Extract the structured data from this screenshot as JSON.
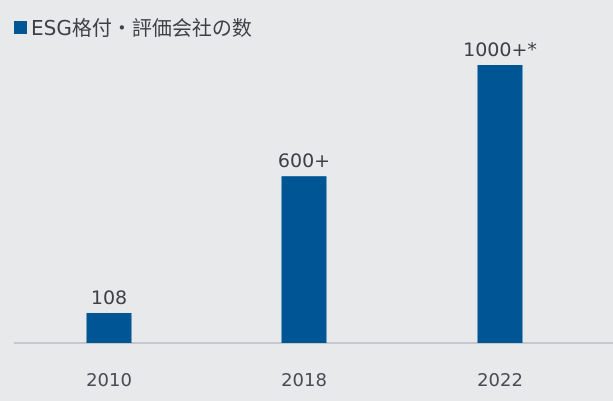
{
  "colors": {
    "background": "#e8e9eb",
    "bar": "#005595",
    "axis": "#b8bcc2",
    "text": "#3f3f46"
  },
  "legend": {
    "label": "ESG格付・評価会社の数",
    "placement": "top-left"
  },
  "chart_data": {
    "type": "bar",
    "categories": [
      "2010",
      "2018",
      "2022"
    ],
    "values": [
      108,
      600,
      1000
    ],
    "data_labels": [
      "108",
      "600+",
      "1000+*"
    ],
    "series": [
      {
        "name": "ESG格付・評価会社の数",
        "values": [
          108,
          600,
          1000
        ]
      }
    ],
    "title": "",
    "xlabel": "",
    "ylabel": "",
    "ylim": [
      0,
      1000
    ],
    "grid": false,
    "legend_placement": "top-left"
  }
}
